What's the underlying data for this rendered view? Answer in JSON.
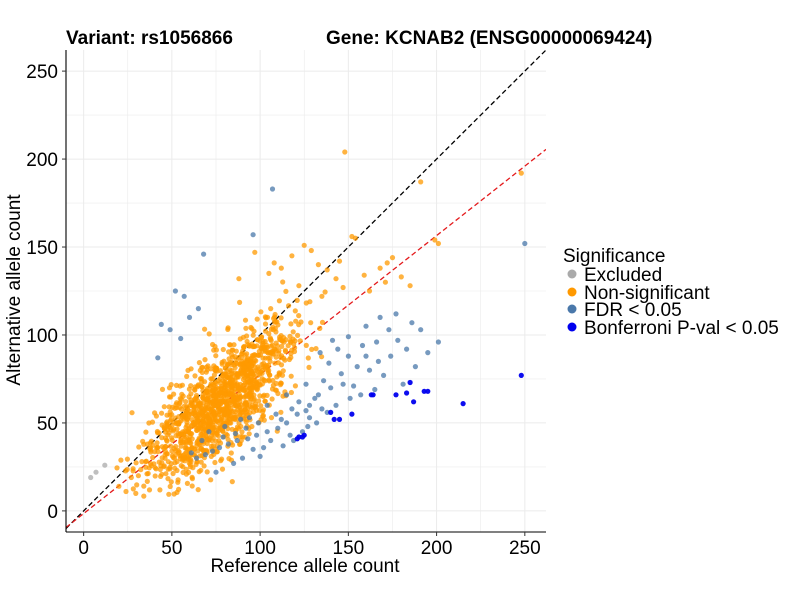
{
  "chart_data": {
    "type": "scatter",
    "title_left": "Variant: rs1056866",
    "title_right": "Gene: KCNAB2 (ENSG00000069424)",
    "xlabel": "Reference allele count",
    "ylabel": "Alternative allele count",
    "xlim": [
      -10,
      262
    ],
    "ylim": [
      -12,
      262
    ],
    "xticks": [
      0,
      50,
      100,
      150,
      200,
      250
    ],
    "yticks": [
      0,
      50,
      100,
      150,
      200,
      250
    ],
    "grid": true,
    "reference_lines": [
      {
        "name": "identity",
        "slope": 1.0,
        "intercept": 0,
        "color": "#000000",
        "style": "dashed"
      },
      {
        "name": "fit",
        "slope": 0.79,
        "intercept": -1.5,
        "color": "#e41a1c",
        "style": "dashed"
      }
    ],
    "legend": {
      "title": "Significance",
      "position": "right",
      "entries": [
        {
          "name": "Excluded",
          "color": "#aaaaaa"
        },
        {
          "name": "Non-significant",
          "color": "#ff9900"
        },
        {
          "name": "FDR < 0.05",
          "color": "#4a78aa"
        },
        {
          "name": "Bonferroni P-val < 0.05",
          "color": "#0000ee"
        }
      ]
    },
    "series": [
      {
        "name": "Excluded",
        "color": "#aaaaaa",
        "points": [
          [
            7,
            22
          ],
          [
            12,
            26
          ],
          [
            4,
            19
          ]
        ]
      },
      {
        "name": "Non-significant",
        "color": "#ff9900",
        "cloud": {
          "center": [
            78,
            62
          ],
          "spread_x": 20,
          "spread_y": 17,
          "count": 1300
        },
        "points": [
          [
            148,
            204
          ],
          [
            191,
            187
          ],
          [
            248,
            192
          ],
          [
            201,
            152
          ],
          [
            199,
            154
          ],
          [
            175,
            144
          ],
          [
            172,
            141
          ],
          [
            138,
            137
          ],
          [
            154,
            155
          ],
          [
            152,
            156
          ],
          [
            145,
            142
          ],
          [
            133,
            140
          ],
          [
            125,
            151
          ],
          [
            168,
            138
          ],
          [
            159,
            134
          ],
          [
            180,
            133
          ],
          [
            162,
            125
          ],
          [
            147,
            127
          ],
          [
            143,
            132
          ],
          [
            108,
            141
          ],
          [
            97,
            147
          ],
          [
            118,
            145
          ],
          [
            105,
            135
          ],
          [
            171,
            130
          ],
          [
            185,
            128
          ],
          [
            129,
            148
          ],
          [
            88,
            132
          ],
          [
            112,
            138
          ],
          [
            122,
            128
          ],
          [
            135,
            122
          ],
          [
            24,
            11
          ],
          [
            20,
            14
          ],
          [
            28,
            24
          ],
          [
            33,
            28
          ],
          [
            31,
            20
          ],
          [
            38,
            36
          ],
          [
            27,
            19
          ]
        ]
      },
      {
        "name": "FDR < 0.05",
        "color": "#4a78aa",
        "points": [
          [
            250,
            152
          ],
          [
            107,
            183
          ],
          [
            96,
            157
          ],
          [
            68,
            146
          ],
          [
            57,
            122
          ],
          [
            52,
            125
          ],
          [
            49,
            103
          ],
          [
            44,
            106
          ],
          [
            42,
            87
          ],
          [
            60,
            110
          ],
          [
            55,
            98
          ],
          [
            65,
            115
          ],
          [
            177,
            112
          ],
          [
            186,
            107
          ],
          [
            191,
            103
          ],
          [
            201,
            96
          ],
          [
            173,
            103
          ],
          [
            166,
            96
          ],
          [
            158,
            94
          ],
          [
            150,
            88
          ],
          [
            144,
            92
          ],
          [
            139,
            84
          ],
          [
            155,
            82
          ],
          [
            162,
            80
          ],
          [
            170,
            77
          ],
          [
            181,
            72
          ],
          [
            147,
            72
          ],
          [
            140,
            70
          ],
          [
            133,
            66
          ],
          [
            128,
            60
          ],
          [
            126,
            57
          ],
          [
            121,
            55
          ],
          [
            115,
            50
          ],
          [
            110,
            47
          ],
          [
            104,
            45
          ],
          [
            98,
            43
          ],
          [
            93,
            41
          ],
          [
            87,
            40
          ],
          [
            82,
            38
          ],
          [
            77,
            36
          ],
          [
            73,
            34
          ],
          [
            69,
            32
          ],
          [
            64,
            30
          ],
          [
            61,
            33
          ],
          [
            75,
            22
          ],
          [
            85,
            27
          ],
          [
            90,
            30
          ],
          [
            102,
            36
          ],
          [
            117,
            43
          ],
          [
            124,
            45
          ],
          [
            132,
            50
          ],
          [
            138,
            56
          ],
          [
            143,
            60
          ],
          [
            151,
            64
          ],
          [
            157,
            66
          ],
          [
            165,
            69
          ],
          [
            112,
            52
          ],
          [
            118,
            58
          ],
          [
            128,
            53
          ],
          [
            135,
            58
          ],
          [
            106,
            40
          ],
          [
            96,
            35
          ],
          [
            100,
            31
          ],
          [
            92,
            47
          ],
          [
            86,
            44
          ],
          [
            79,
            42
          ],
          [
            122,
            62
          ],
          [
            131,
            64
          ],
          [
            136,
            74
          ],
          [
            146,
            78
          ],
          [
            153,
            71
          ],
          [
            160,
            88
          ],
          [
            119,
            40
          ],
          [
            113,
            37
          ],
          [
            127,
            48
          ],
          [
            109,
            55
          ],
          [
            99,
            50
          ],
          [
            94,
            53
          ],
          [
            167,
            85
          ],
          [
            174,
            88
          ],
          [
            183,
            92
          ],
          [
            195,
            90
          ],
          [
            188,
            82
          ],
          [
            178,
            97
          ],
          [
            168,
            110
          ],
          [
            160,
            105
          ],
          [
            150,
            99
          ],
          [
            141,
            97
          ],
          [
            134,
            90
          ],
          [
            126,
            72
          ],
          [
            115,
            66
          ],
          [
            104,
            60
          ],
          [
            89,
            52
          ],
          [
            80,
            48
          ],
          [
            71,
            45
          ],
          [
            67,
            40
          ]
        ]
      },
      {
        "name": "Bonferroni P-val < 0.05",
        "color": "#0000ee",
        "points": [
          [
            248,
            77
          ],
          [
            215,
            61
          ],
          [
            195,
            68
          ],
          [
            193,
            68
          ],
          [
            185,
            73
          ],
          [
            183,
            67
          ],
          [
            177,
            66
          ],
          [
            187,
            62
          ],
          [
            164,
            66
          ],
          [
            163,
            66
          ],
          [
            145,
            52
          ],
          [
            142,
            52
          ],
          [
            125,
            43
          ],
          [
            124,
            42
          ],
          [
            122,
            42
          ],
          [
            121,
            41
          ],
          [
            140,
            56
          ],
          [
            152,
            55
          ]
        ]
      }
    ]
  }
}
